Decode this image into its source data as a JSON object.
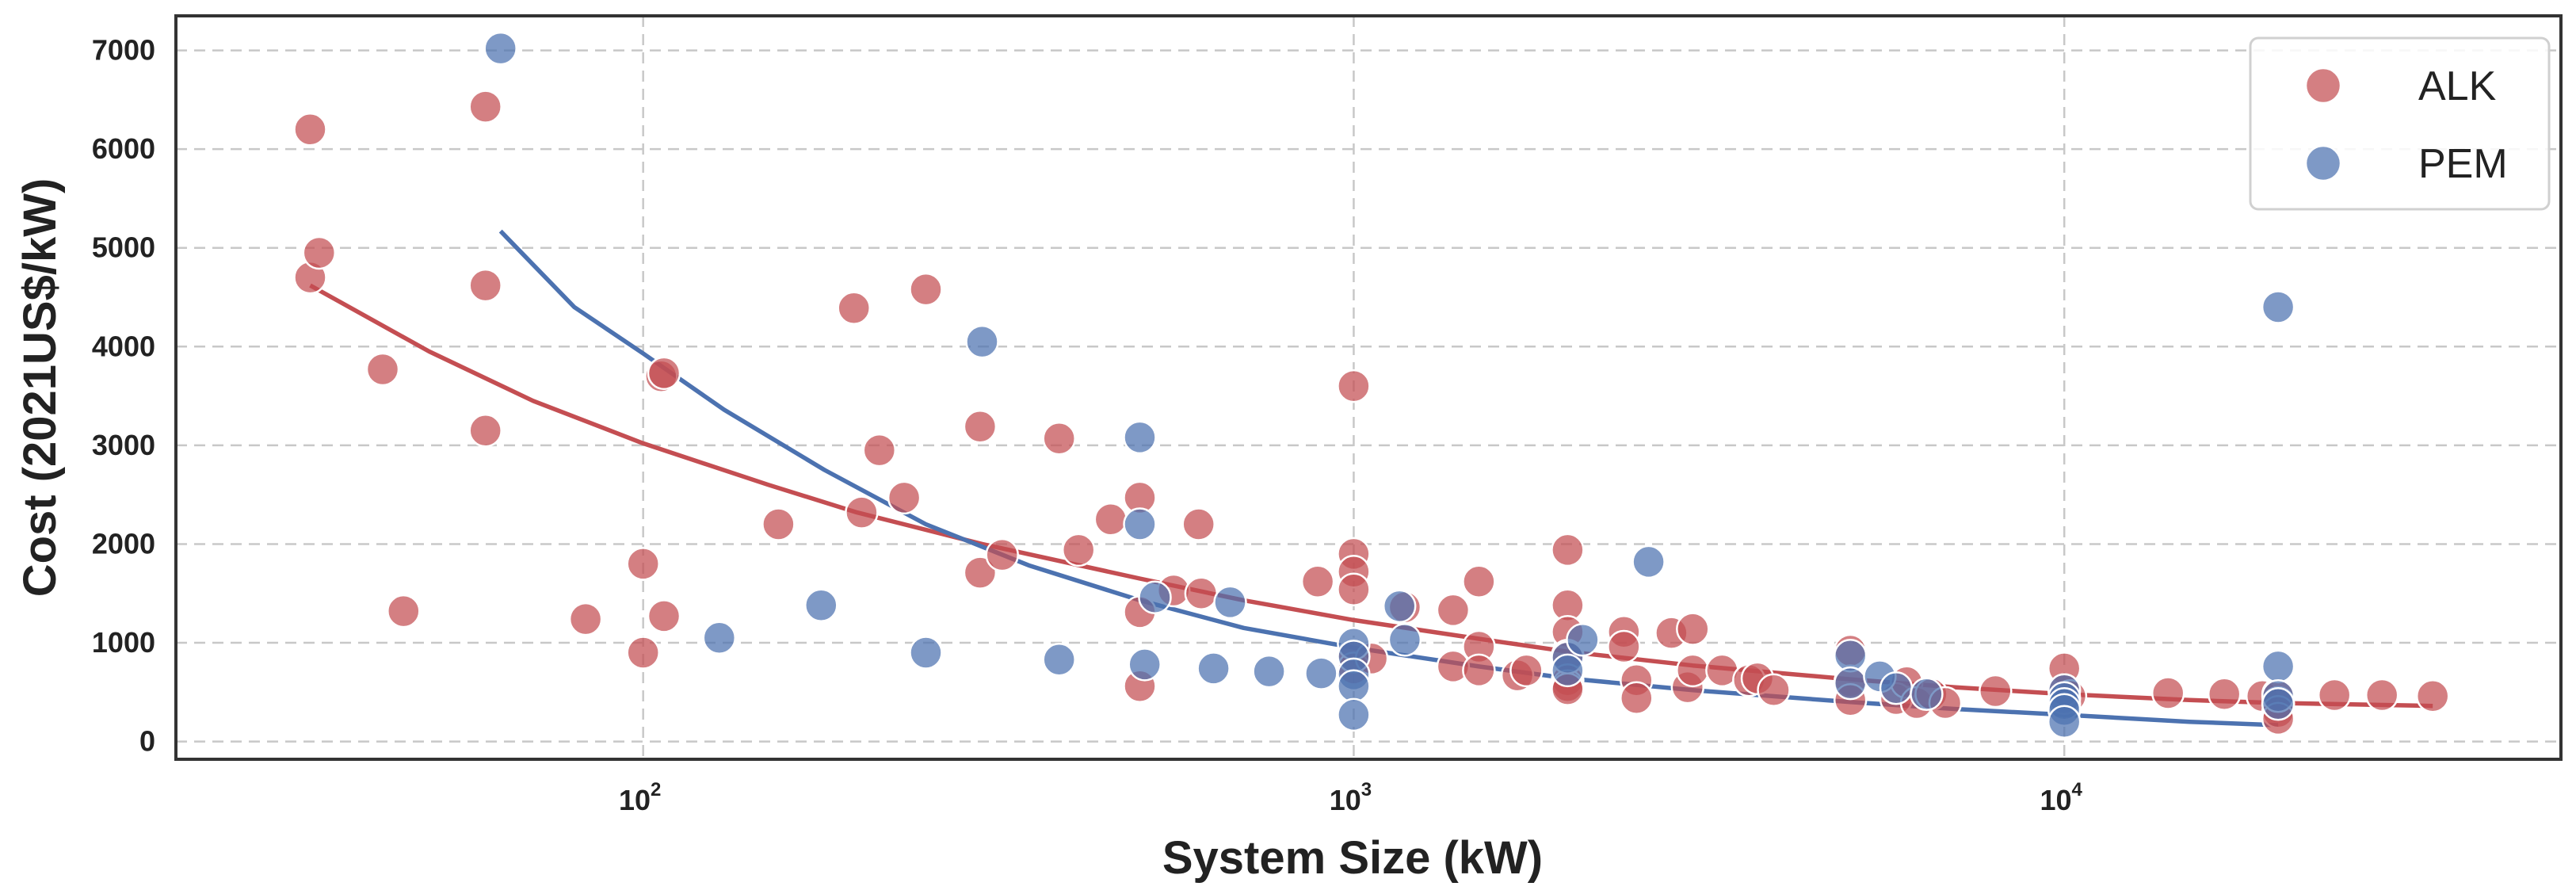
{
  "chart_data": {
    "type": "scatter",
    "title": "",
    "xlabel": "System Size (kW)",
    "ylabel": "Cost (2021US$/kW)",
    "xscale": "log",
    "xlim": [
      22,
      50000
    ],
    "ylim": [
      -180,
      7350
    ],
    "grid": true,
    "legend_position": "top-right",
    "y_ticks": [
      0,
      1000,
      2000,
      3000,
      4000,
      5000,
      6000,
      7000
    ],
    "x_ticks": [
      {
        "value": 100,
        "base": "10",
        "exp": "2"
      },
      {
        "value": 1000,
        "base": "10",
        "exp": "3"
      },
      {
        "value": 10000,
        "base": "10",
        "exp": "4"
      }
    ],
    "series": [
      {
        "name": "ALK",
        "color": "#c44e52",
        "points": [
          [
            34,
            6200
          ],
          [
            34,
            4700
          ],
          [
            35,
            4950
          ],
          [
            43,
            3770
          ],
          [
            46,
            1320
          ],
          [
            60,
            6430
          ],
          [
            60,
            4620
          ],
          [
            60,
            3150
          ],
          [
            83,
            1240
          ],
          [
            100,
            1800
          ],
          [
            100,
            900
          ],
          [
            106,
            3700
          ],
          [
            107,
            3730
          ],
          [
            107,
            1270
          ],
          [
            155,
            2200
          ],
          [
            198,
            4390
          ],
          [
            203,
            2320
          ],
          [
            215,
            2950
          ],
          [
            233,
            2470
          ],
          [
            250,
            4580
          ],
          [
            298,
            3190
          ],
          [
            298,
            1710
          ],
          [
            320,
            1890
          ],
          [
            385,
            3070
          ],
          [
            410,
            1940
          ],
          [
            455,
            2250
          ],
          [
            500,
            2470
          ],
          [
            500,
            1310
          ],
          [
            500,
            560
          ],
          [
            558,
            1530
          ],
          [
            605,
            2200
          ],
          [
            610,
            1500
          ],
          [
            890,
            1620
          ],
          [
            1000,
            3600
          ],
          [
            1000,
            1900
          ],
          [
            1000,
            1720
          ],
          [
            1000,
            1540
          ],
          [
            1000,
            880
          ],
          [
            1000,
            740
          ],
          [
            1060,
            840
          ],
          [
            1180,
            1360
          ],
          [
            1380,
            1330
          ],
          [
            1380,
            760
          ],
          [
            1500,
            1620
          ],
          [
            1500,
            960
          ],
          [
            1500,
            720
          ],
          [
            1700,
            670
          ],
          [
            1750,
            720
          ],
          [
            2000,
            1940
          ],
          [
            2000,
            1380
          ],
          [
            2000,
            1110
          ],
          [
            2000,
            870
          ],
          [
            2000,
            620
          ],
          [
            2000,
            560
          ],
          [
            2000,
            530
          ],
          [
            2400,
            1110
          ],
          [
            2400,
            960
          ],
          [
            2500,
            620
          ],
          [
            2500,
            440
          ],
          [
            2800,
            1100
          ],
          [
            2950,
            550
          ],
          [
            3000,
            1140
          ],
          [
            3000,
            720
          ],
          [
            3300,
            720
          ],
          [
            3600,
            620
          ],
          [
            3700,
            640
          ],
          [
            3900,
            520
          ],
          [
            5000,
            920
          ],
          [
            5000,
            610
          ],
          [
            5000,
            420
          ],
          [
            5800,
            430
          ],
          [
            6000,
            600
          ],
          [
            6200,
            390
          ],
          [
            6500,
            480
          ],
          [
            6800,
            390
          ],
          [
            8000,
            510
          ],
          [
            10000,
            740
          ],
          [
            10000,
            520
          ],
          [
            10200,
            460
          ],
          [
            14000,
            490
          ],
          [
            16800,
            480
          ],
          [
            19000,
            460
          ],
          [
            20000,
            480
          ],
          [
            20000,
            390
          ],
          [
            20000,
            300
          ],
          [
            20000,
            230
          ],
          [
            24000,
            470
          ],
          [
            28000,
            470
          ],
          [
            33000,
            460
          ]
        ],
        "trend": [
          [
            34,
            4620
          ],
          [
            50,
            3950
          ],
          [
            70,
            3450
          ],
          [
            100,
            3020
          ],
          [
            150,
            2600
          ],
          [
            200,
            2320
          ],
          [
            300,
            2000
          ],
          [
            500,
            1650
          ],
          [
            700,
            1430
          ],
          [
            1000,
            1230
          ],
          [
            1500,
            1040
          ],
          [
            2000,
            910
          ],
          [
            3000,
            770
          ],
          [
            5000,
            630
          ],
          [
            7000,
            550
          ],
          [
            10000,
            480
          ],
          [
            15000,
            420
          ],
          [
            20000,
            390
          ],
          [
            33000,
            360
          ]
        ]
      },
      {
        "name": "PEM",
        "color": "#4c72b0",
        "points": [
          [
            63,
            7020
          ],
          [
            128,
            1050
          ],
          [
            178,
            1380
          ],
          [
            250,
            900
          ],
          [
            300,
            4050
          ],
          [
            385,
            830
          ],
          [
            500,
            3080
          ],
          [
            500,
            2200
          ],
          [
            508,
            780
          ],
          [
            525,
            1460
          ],
          [
            635,
            740
          ],
          [
            670,
            1410
          ],
          [
            760,
            710
          ],
          [
            900,
            690
          ],
          [
            1000,
            990
          ],
          [
            1000,
            860
          ],
          [
            1000,
            680
          ],
          [
            1000,
            560
          ],
          [
            1000,
            270
          ],
          [
            1160,
            1370
          ],
          [
            1180,
            1030
          ],
          [
            2000,
            850
          ],
          [
            2000,
            720
          ],
          [
            2100,
            1030
          ],
          [
            2600,
            1820
          ],
          [
            5000,
            870
          ],
          [
            5000,
            590
          ],
          [
            5500,
            660
          ],
          [
            5800,
            540
          ],
          [
            6400,
            480
          ],
          [
            10000,
            520
          ],
          [
            10000,
            440
          ],
          [
            10000,
            380
          ],
          [
            10000,
            320
          ],
          [
            10000,
            200
          ],
          [
            20000,
            4400
          ],
          [
            20000,
            760
          ],
          [
            20000,
            460
          ],
          [
            20000,
            380
          ]
        ],
        "trend": [
          [
            63,
            5170
          ],
          [
            80,
            4400
          ],
          [
            100,
            3930
          ],
          [
            130,
            3360
          ],
          [
            180,
            2750
          ],
          [
            250,
            2200
          ],
          [
            350,
            1780
          ],
          [
            500,
            1430
          ],
          [
            700,
            1150
          ],
          [
            1000,
            950
          ],
          [
            1500,
            760
          ],
          [
            2000,
            640
          ],
          [
            3000,
            520
          ],
          [
            5000,
            400
          ],
          [
            7000,
            330
          ],
          [
            10000,
            270
          ],
          [
            15000,
            200
          ],
          [
            20000,
            165
          ]
        ]
      }
    ]
  }
}
